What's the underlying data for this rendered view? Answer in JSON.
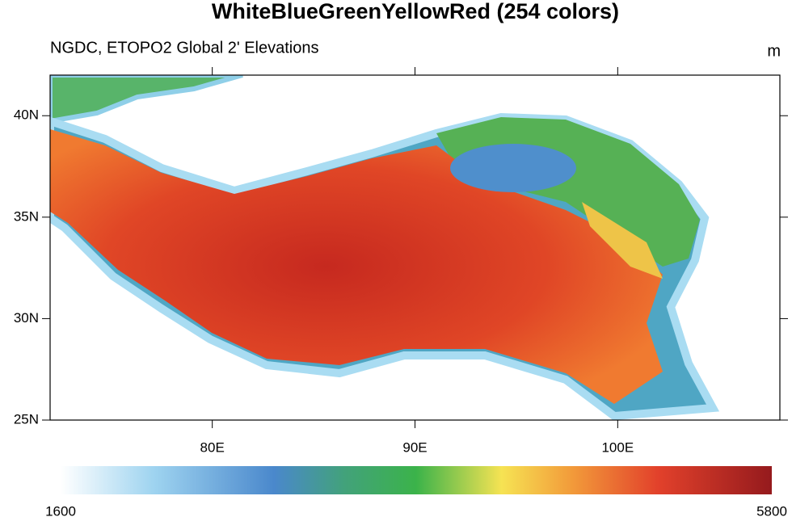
{
  "header": {
    "title": "WhiteBlueGreenYellowRed (254 colors)",
    "subtitle": "NGDC, ETOPO2 Global 2' Elevations",
    "units": "m"
  },
  "map": {
    "lonlim": [
      72,
      108
    ],
    "latlim": [
      25,
      42
    ],
    "lon_ticks": [
      {
        "value": 80,
        "label": "80E"
      },
      {
        "value": 90,
        "label": "90E"
      },
      {
        "value": 100,
        "label": "100E"
      }
    ],
    "lat_ticks": [
      {
        "value": 25,
        "label": "25N"
      },
      {
        "value": 30,
        "label": "30N"
      },
      {
        "value": 35,
        "label": "35N"
      },
      {
        "value": 40,
        "label": "40N"
      }
    ]
  },
  "colorbar": {
    "range": [
      1600,
      5800
    ]
  }
}
